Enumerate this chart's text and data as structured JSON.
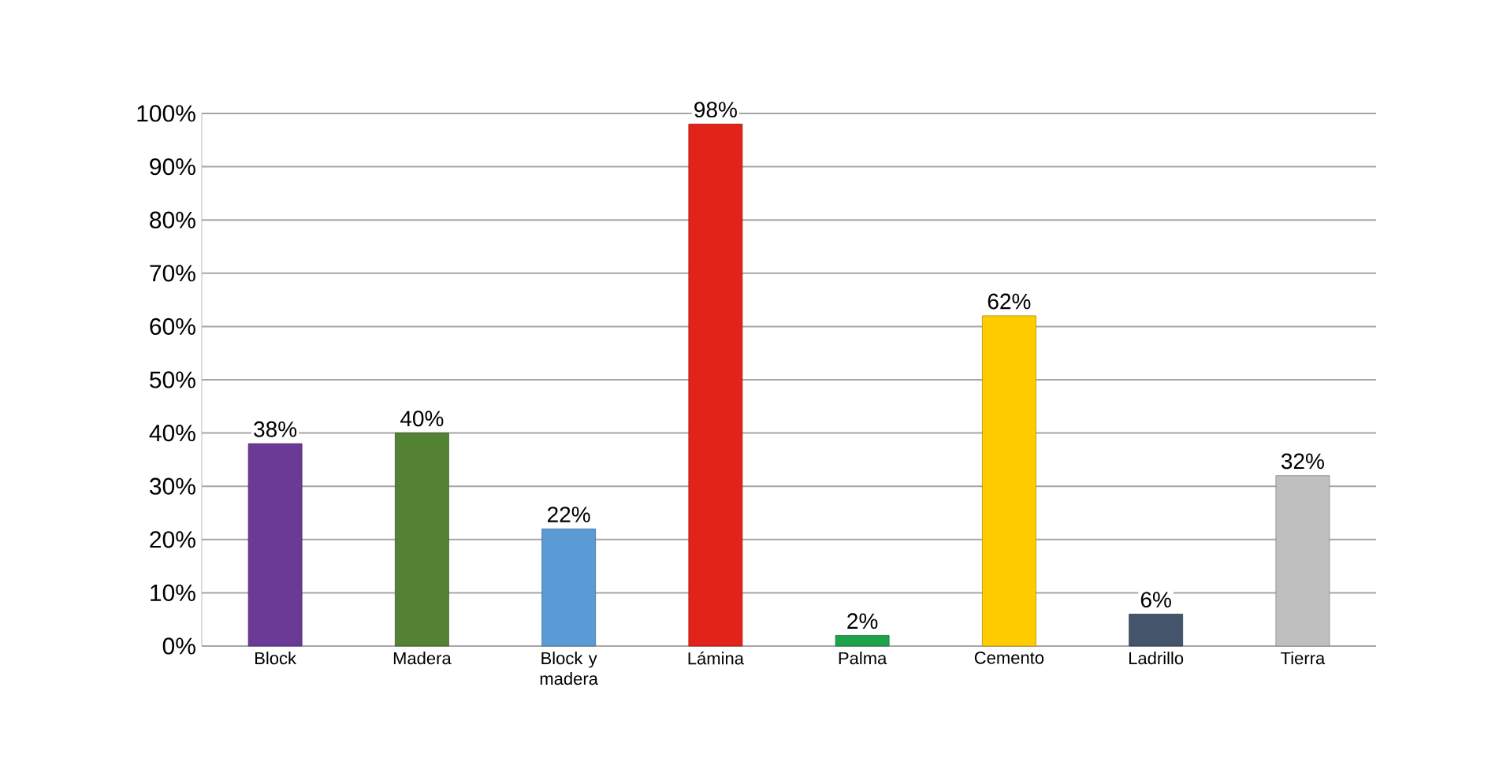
{
  "chart_data": {
    "type": "bar",
    "categories": [
      "Block",
      "Madera",
      "Block y madera",
      "Lámina",
      "Palma",
      "Cemento",
      "Ladrillo",
      "Tierra"
    ],
    "values": [
      38,
      40,
      22,
      98,
      2,
      62,
      6,
      32
    ],
    "value_labels": [
      "38%",
      "40%",
      "22%",
      "98%",
      "2%",
      "62%",
      "6%",
      "32%"
    ],
    "colors": [
      "#6b3a96",
      "#548235",
      "#5b9bd5",
      "#e2231a",
      "#1fa34a",
      "#ffcc00",
      "#44546a",
      "#bfbfbf"
    ],
    "ylim": [
      0,
      100
    ],
    "yticks": [
      {
        "value": 0,
        "label": "0%"
      },
      {
        "value": 10,
        "label": "10%"
      },
      {
        "value": 20,
        "label": "20%"
      },
      {
        "value": 30,
        "label": "30%"
      },
      {
        "value": 40,
        "label": "40%"
      },
      {
        "value": 50,
        "label": "50%"
      },
      {
        "value": 60,
        "label": "60%"
      },
      {
        "value": 70,
        "label": "70%"
      },
      {
        "value": 80,
        "label": "80%"
      },
      {
        "value": 90,
        "label": "90%"
      },
      {
        "value": 100,
        "label": "100%"
      }
    ],
    "grid": "y"
  }
}
